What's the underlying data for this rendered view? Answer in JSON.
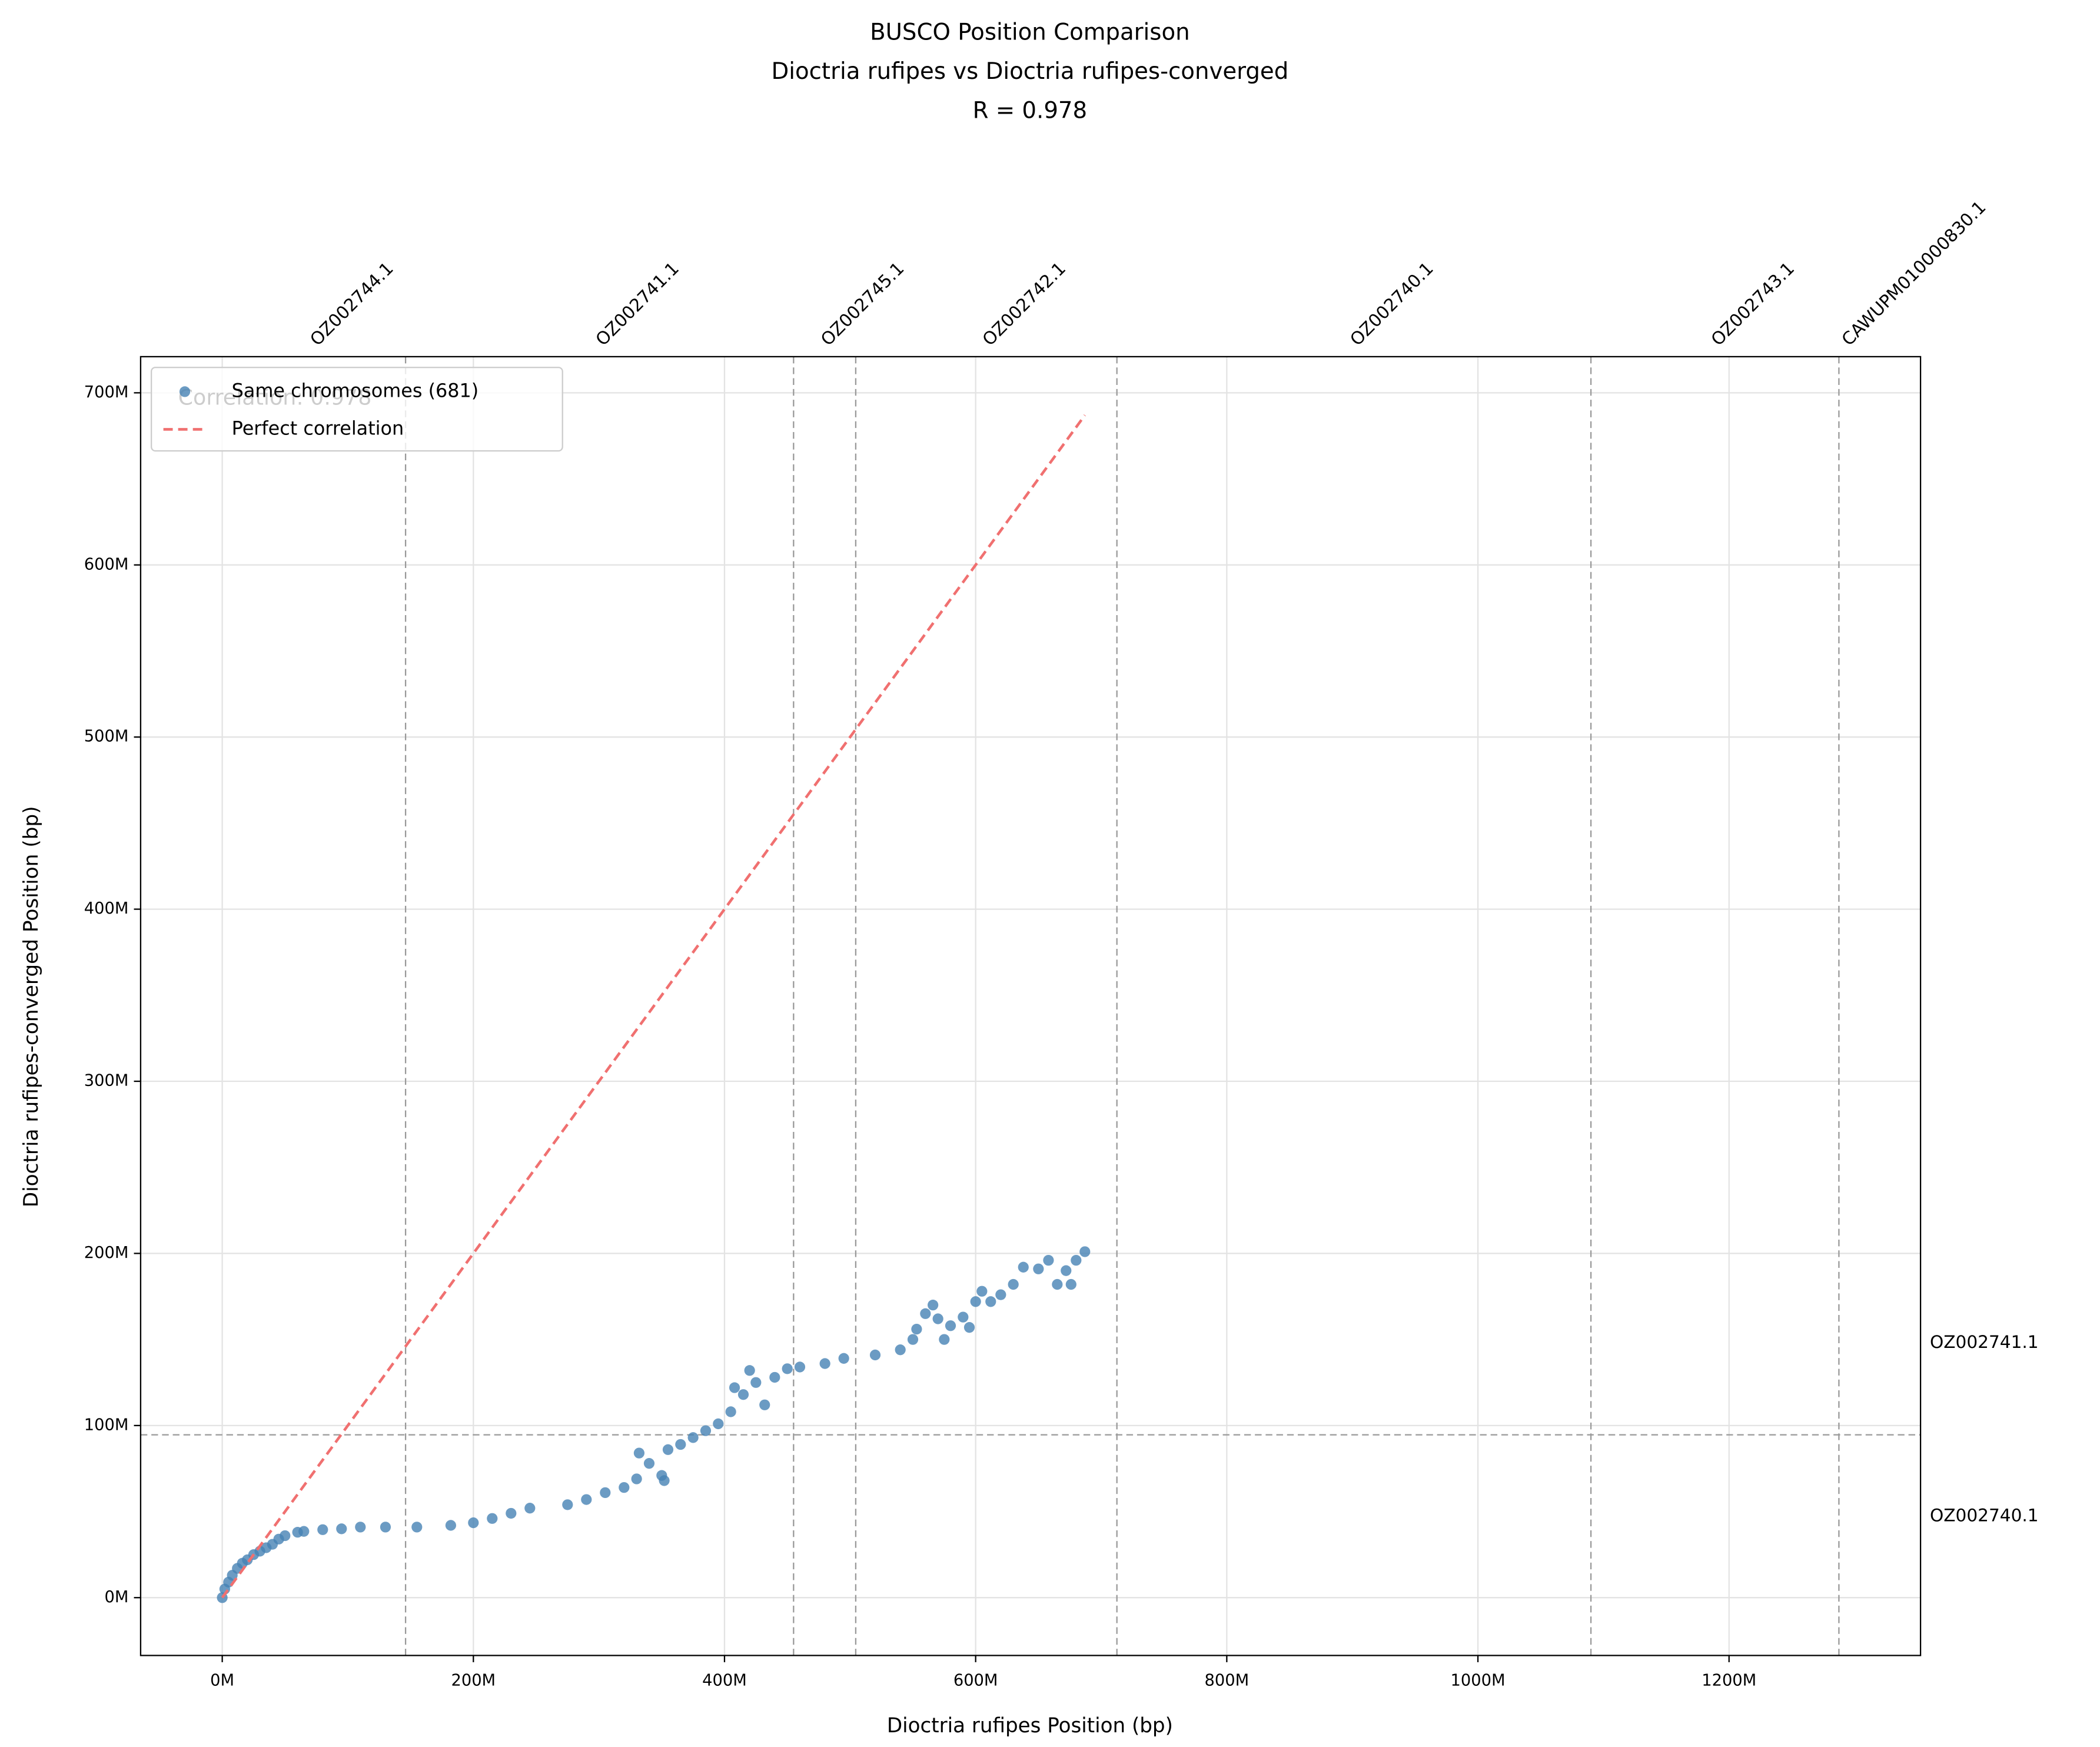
{
  "chart_data": {
    "type": "scatter",
    "title": [
      "BUSCO Position Comparison",
      "Dioctria rufipes vs Dioctria rufipes-converged",
      "R = 0.978"
    ],
    "x_label": "Dioctria rufipes Position (bp)",
    "y_label": "Dioctria rufipes-converged Position (bp)",
    "annotation": "Correlation: 0.978",
    "xlim": [
      -65000000,
      1352500000
    ],
    "ylim": [
      -33600000,
      721000000
    ],
    "xticks": [
      {
        "value": 0,
        "label": "0M"
      },
      {
        "value": 200000000,
        "label": "200M"
      },
      {
        "value": 400000000,
        "label": "400M"
      },
      {
        "value": 600000000,
        "label": "600M"
      },
      {
        "value": 800000000,
        "label": "800M"
      },
      {
        "value": 1000000000,
        "label": "1000M"
      },
      {
        "value": 1200000000,
        "label": "1200M"
      }
    ],
    "yticks": [
      {
        "value": 0,
        "label": "0M"
      },
      {
        "value": 100000000,
        "label": "100M"
      },
      {
        "value": 200000000,
        "label": "200M"
      },
      {
        "value": 300000000,
        "label": "300M"
      },
      {
        "value": 400000000,
        "label": "400M"
      },
      {
        "value": 500000000,
        "label": "500M"
      },
      {
        "value": 600000000,
        "label": "600M"
      },
      {
        "value": 700000000,
        "label": "700M"
      }
    ],
    "grid": true,
    "legend": "upper left",
    "x_chromosomes": [
      {
        "name": "OZ002744.1",
        "start": 0,
        "end": 146000000
      },
      {
        "name": "OZ002741.1",
        "start": 146000000,
        "end": 455000000
      },
      {
        "name": "OZ002745.1",
        "start": 455000000,
        "end": 504500000
      },
      {
        "name": "OZ002742.1",
        "start": 504500000,
        "end": 712500000
      },
      {
        "name": "OZ002740.1",
        "start": 712500000,
        "end": 1090000000
      },
      {
        "name": "OZ002743.1",
        "start": 1090000000,
        "end": 1287500000
      },
      {
        "name": "CAWUPM010000830.1",
        "start": 1287500000,
        "end": 1298000000
      }
    ],
    "y_chromosomes": [
      {
        "name": "OZ002740.1",
        "start": 0,
        "end": 94600000
      },
      {
        "name": "OZ002741.1",
        "start": 94600000,
        "end": 201500000
      }
    ],
    "series": [
      {
        "name": "Same chromosomes (681)",
        "type": "scatter",
        "color": "#4682b4",
        "x": [
          0,
          2000000,
          5000000,
          8000000,
          12000000,
          16000000,
          20000000,
          25000000,
          30000000,
          35000000,
          40000000,
          45000000,
          50000000,
          60000000,
          65000000,
          80000000,
          95000000,
          110000000,
          130000000,
          155000000,
          182000000,
          200000000,
          215000000,
          230000000,
          245000000,
          275000000,
          290000000,
          305000000,
          320000000,
          330000000,
          332000000,
          340000000,
          350000000,
          352000000,
          355000000,
          365000000,
          375000000,
          385000000,
          395000000,
          405000000,
          408000000,
          415000000,
          420000000,
          425000000,
          432000000,
          440000000,
          450000000,
          460000000,
          480000000,
          495000000,
          520000000,
          540000000,
          550000000,
          553000000,
          560000000,
          566000000,
          570000000,
          575000000,
          580000000,
          590000000,
          595000000,
          600000000,
          605000000,
          612000000,
          620000000,
          630000000,
          638000000,
          650000000,
          658000000,
          665000000,
          672000000,
          676000000,
          680000000,
          687000000
        ],
        "values": [
          0,
          5000000,
          9000000,
          13000000,
          17000000,
          20000000,
          22000000,
          25000000,
          27000000,
          29000000,
          31000000,
          34000000,
          36000000,
          38000000,
          38500000,
          39500000,
          40000000,
          41000000,
          41000000,
          41000000,
          42000000,
          43500000,
          46000000,
          49000000,
          52000000,
          54000000,
          57000000,
          61000000,
          64000000,
          69000000,
          84000000,
          78000000,
          71000000,
          68000000,
          86000000,
          89000000,
          93000000,
          97000000,
          101000000,
          108000000,
          122000000,
          118000000,
          132000000,
          125000000,
          112000000,
          128000000,
          133000000,
          134000000,
          136000000,
          139000000,
          141000000,
          144000000,
          150000000,
          156000000,
          165000000,
          170000000,
          162000000,
          150000000,
          158000000,
          163000000,
          157000000,
          172000000,
          178000000,
          172000000,
          176000000,
          182000000,
          192000000,
          191000000,
          196000000,
          182000000,
          190000000,
          182000000,
          196000000,
          201000000
        ]
      },
      {
        "name": "Perfect correlation",
        "type": "line",
        "color": "#f07070",
        "x": [
          0,
          687000000
        ],
        "values": [
          0,
          687000000
        ]
      }
    ]
  }
}
